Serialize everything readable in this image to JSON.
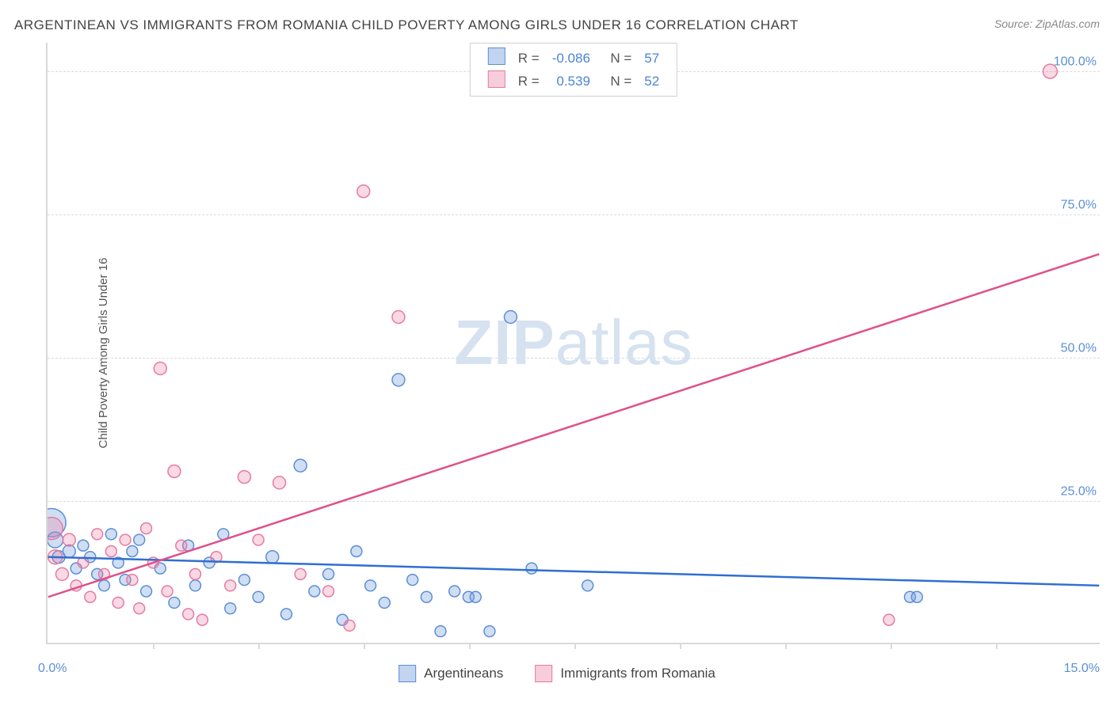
{
  "title": "ARGENTINEAN VS IMMIGRANTS FROM ROMANIA CHILD POVERTY AMONG GIRLS UNDER 16 CORRELATION CHART",
  "source_label": "Source: ZipAtlas.com",
  "watermark": "ZIPatlas",
  "ylabel": "Child Poverty Among Girls Under 16",
  "chart": {
    "type": "scatter",
    "background_color": "#ffffff",
    "grid_color": "#dcdcdc",
    "axis_color": "#d9d9d9",
    "text_color": "#555555",
    "tick_label_color": "#5b8fd6",
    "xlim": [
      0,
      15
    ],
    "ylim": [
      0,
      105
    ],
    "x_start_label": "0.0%",
    "x_end_label": "15.0%",
    "y_gridlines": [
      25,
      50,
      75,
      100
    ],
    "y_labels": [
      "25.0%",
      "50.0%",
      "75.0%",
      "100.0%"
    ],
    "x_minor_ticks_approx": [
      1.5,
      3.0,
      4.5,
      6.0,
      7.5,
      9.0,
      10.5,
      12.0,
      13.5
    ],
    "series": [
      {
        "name": "Argentineans",
        "marker_fill": "rgba(120,160,220,0.35)",
        "marker_stroke": "#5b8fd6",
        "line_color": "#2f6fd0",
        "line_width": 2.5,
        "R": "-0.086",
        "N": "57",
        "trend": {
          "y_at_x0": 15.0,
          "y_at_xmax": 10.0
        },
        "points": [
          {
            "x": 0.05,
            "y": 21,
            "r": 18
          },
          {
            "x": 0.1,
            "y": 18,
            "r": 10
          },
          {
            "x": 0.15,
            "y": 15,
            "r": 8
          },
          {
            "x": 0.3,
            "y": 16,
            "r": 8
          },
          {
            "x": 0.4,
            "y": 13,
            "r": 7
          },
          {
            "x": 0.5,
            "y": 17,
            "r": 7
          },
          {
            "x": 0.6,
            "y": 15,
            "r": 7
          },
          {
            "x": 0.7,
            "y": 12,
            "r": 7
          },
          {
            "x": 0.8,
            "y": 10,
            "r": 7
          },
          {
            "x": 0.9,
            "y": 19,
            "r": 7
          },
          {
            "x": 1.0,
            "y": 14,
            "r": 7
          },
          {
            "x": 1.1,
            "y": 11,
            "r": 7
          },
          {
            "x": 1.2,
            "y": 16,
            "r": 7
          },
          {
            "x": 1.3,
            "y": 18,
            "r": 7
          },
          {
            "x": 1.4,
            "y": 9,
            "r": 7
          },
          {
            "x": 1.6,
            "y": 13,
            "r": 7
          },
          {
            "x": 1.8,
            "y": 7,
            "r": 7
          },
          {
            "x": 2.0,
            "y": 17,
            "r": 7
          },
          {
            "x": 2.1,
            "y": 10,
            "r": 7
          },
          {
            "x": 2.3,
            "y": 14,
            "r": 7
          },
          {
            "x": 2.5,
            "y": 19,
            "r": 7
          },
          {
            "x": 2.6,
            "y": 6,
            "r": 7
          },
          {
            "x": 2.8,
            "y": 11,
            "r": 7
          },
          {
            "x": 3.0,
            "y": 8,
            "r": 7
          },
          {
            "x": 3.2,
            "y": 15,
            "r": 8
          },
          {
            "x": 3.4,
            "y": 5,
            "r": 7
          },
          {
            "x": 3.6,
            "y": 31,
            "r": 8
          },
          {
            "x": 3.8,
            "y": 9,
            "r": 7
          },
          {
            "x": 4.0,
            "y": 12,
            "r": 7
          },
          {
            "x": 4.2,
            "y": 4,
            "r": 7
          },
          {
            "x": 4.4,
            "y": 16,
            "r": 7
          },
          {
            "x": 4.6,
            "y": 10,
            "r": 7
          },
          {
            "x": 4.8,
            "y": 7,
            "r": 7
          },
          {
            "x": 5.0,
            "y": 46,
            "r": 8
          },
          {
            "x": 5.2,
            "y": 11,
            "r": 7
          },
          {
            "x": 5.4,
            "y": 8,
            "r": 7
          },
          {
            "x": 5.6,
            "y": 2,
            "r": 7
          },
          {
            "x": 5.8,
            "y": 9,
            "r": 7
          },
          {
            "x": 6.0,
            "y": 8,
            "r": 7
          },
          {
            "x": 6.1,
            "y": 8,
            "r": 7
          },
          {
            "x": 6.3,
            "y": 2,
            "r": 7
          },
          {
            "x": 6.6,
            "y": 57,
            "r": 8
          },
          {
            "x": 6.9,
            "y": 13,
            "r": 7
          },
          {
            "x": 7.7,
            "y": 10,
            "r": 7
          },
          {
            "x": 12.3,
            "y": 8,
            "r": 7
          },
          {
            "x": 12.4,
            "y": 8,
            "r": 7
          }
        ]
      },
      {
        "name": "Immigrants from Romania",
        "marker_fill": "rgba(235,130,165,0.30)",
        "marker_stroke": "#e67aa3",
        "line_color": "#e05088",
        "line_width": 2.5,
        "R": "0.539",
        "N": "52",
        "trend": {
          "y_at_x0": 8.0,
          "y_at_xmax": 68.0
        },
        "points": [
          {
            "x": 0.05,
            "y": 20,
            "r": 14
          },
          {
            "x": 0.1,
            "y": 15,
            "r": 9
          },
          {
            "x": 0.2,
            "y": 12,
            "r": 8
          },
          {
            "x": 0.3,
            "y": 18,
            "r": 8
          },
          {
            "x": 0.4,
            "y": 10,
            "r": 7
          },
          {
            "x": 0.5,
            "y": 14,
            "r": 7
          },
          {
            "x": 0.6,
            "y": 8,
            "r": 7
          },
          {
            "x": 0.7,
            "y": 19,
            "r": 7
          },
          {
            "x": 0.8,
            "y": 12,
            "r": 7
          },
          {
            "x": 0.9,
            "y": 16,
            "r": 7
          },
          {
            "x": 1.0,
            "y": 7,
            "r": 7
          },
          {
            "x": 1.1,
            "y": 18,
            "r": 7
          },
          {
            "x": 1.2,
            "y": 11,
            "r": 7
          },
          {
            "x": 1.3,
            "y": 6,
            "r": 7
          },
          {
            "x": 1.4,
            "y": 20,
            "r": 7
          },
          {
            "x": 1.5,
            "y": 14,
            "r": 7
          },
          {
            "x": 1.6,
            "y": 48,
            "r": 8
          },
          {
            "x": 1.7,
            "y": 9,
            "r": 7
          },
          {
            "x": 1.8,
            "y": 30,
            "r": 8
          },
          {
            "x": 1.9,
            "y": 17,
            "r": 7
          },
          {
            "x": 2.0,
            "y": 5,
            "r": 7
          },
          {
            "x": 2.1,
            "y": 12,
            "r": 7
          },
          {
            "x": 2.2,
            "y": 4,
            "r": 7
          },
          {
            "x": 2.4,
            "y": 15,
            "r": 7
          },
          {
            "x": 2.6,
            "y": 10,
            "r": 7
          },
          {
            "x": 2.8,
            "y": 29,
            "r": 8
          },
          {
            "x": 3.0,
            "y": 18,
            "r": 7
          },
          {
            "x": 3.3,
            "y": 28,
            "r": 8
          },
          {
            "x": 3.6,
            "y": 12,
            "r": 7
          },
          {
            "x": 4.0,
            "y": 9,
            "r": 7
          },
          {
            "x": 4.3,
            "y": 3,
            "r": 7
          },
          {
            "x": 4.5,
            "y": 79,
            "r": 8
          },
          {
            "x": 5.0,
            "y": 57,
            "r": 8
          },
          {
            "x": 12.0,
            "y": 4,
            "r": 7
          },
          {
            "x": 14.3,
            "y": 100,
            "r": 9
          }
        ]
      }
    ]
  },
  "legend_bottom": [
    {
      "label": "Argentineans",
      "fill": "rgba(120,160,220,0.45)",
      "stroke": "#5b8fd6"
    },
    {
      "label": "Immigrants from Romania",
      "fill": "rgba(235,130,165,0.40)",
      "stroke": "#e67aa3"
    }
  ]
}
